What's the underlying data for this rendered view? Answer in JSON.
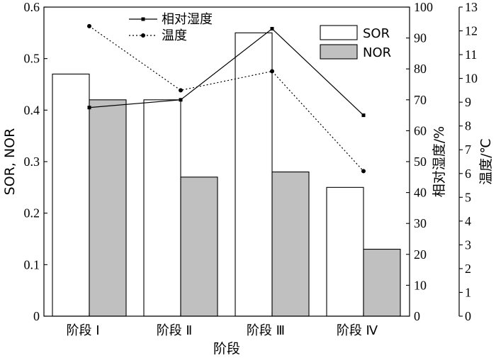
{
  "chart_data": {
    "type": "bar",
    "categories": [
      "阶段 Ⅰ",
      "阶段 Ⅱ",
      "阶段 Ⅲ",
      "阶段 Ⅳ"
    ],
    "xlabel": "阶段",
    "ylabel_left": "SOR, NOR",
    "ylabel_right1": "相对湿度/%",
    "ylabel_right2": "温度/℃",
    "ylim_left": [
      0,
      0.6
    ],
    "ylim_right1": [
      0,
      100
    ],
    "ylim_right2": [
      0,
      13
    ],
    "left_ticks": [
      "0",
      "0.1",
      "0.2",
      "0.3",
      "0.4",
      "0.5",
      "0.6"
    ],
    "right1_ticks": [
      "0",
      "10",
      "20",
      "30",
      "40",
      "50",
      "60",
      "70",
      "80",
      "90",
      "100"
    ],
    "right2_ticks": [
      "0",
      "1",
      "2",
      "3",
      "4",
      "5",
      "6",
      "7",
      "8",
      "9",
      "10",
      "11",
      "12",
      "13"
    ],
    "bar_series": [
      {
        "name": "SOR",
        "values": [
          0.47,
          0.42,
          0.55,
          0.25
        ],
        "color": "#ffffff"
      },
      {
        "name": "NOR",
        "values": [
          0.42,
          0.27,
          0.28,
          0.13
        ],
        "color": "#c0c0c0"
      }
    ],
    "line_series": [
      {
        "name": "相对湿度",
        "axis": "right1",
        "style": "solid",
        "marker": "square",
        "values": [
          67.5,
          70,
          93,
          65
        ]
      },
      {
        "name": "温度",
        "axis": "right2",
        "style": "dotted",
        "marker": "circle",
        "values": [
          12.2,
          9.5,
          10.3,
          6.1
        ]
      }
    ],
    "grid": false,
    "legend_bars": "top-right",
    "legend_lines": "top-center"
  }
}
